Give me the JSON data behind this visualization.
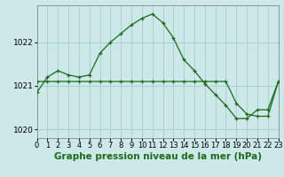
{
  "title": "Graphe pression niveau de la mer (hPa)",
  "background_color": "#cde8e8",
  "grid_color": "#aacccc",
  "line_color": "#1a6b1a",
  "hours": [
    0,
    1,
    2,
    3,
    4,
    5,
    6,
    7,
    8,
    9,
    10,
    11,
    12,
    13,
    14,
    15,
    16,
    17,
    18,
    19,
    20,
    21,
    22,
    23
  ],
  "series1": [
    1020.85,
    1021.2,
    1021.35,
    1021.25,
    1021.2,
    1021.25,
    1021.75,
    1022.0,
    1022.2,
    1022.4,
    1022.55,
    1022.65,
    1022.45,
    1022.1,
    1021.6,
    1021.35,
    1021.05,
    1020.8,
    1020.55,
    1020.25,
    1020.25,
    1020.45,
    1020.45,
    1021.1
  ],
  "series2": [
    1021.1,
    1021.1,
    1021.1,
    1021.1,
    1021.1,
    1021.1,
    1021.1,
    1021.1,
    1021.1,
    1021.1,
    1021.1,
    1021.1,
    1021.1,
    1021.1,
    1021.1,
    1021.1,
    1021.1,
    1021.1,
    1021.1,
    1020.6,
    1020.35,
    1020.3,
    1020.3,
    1021.1
  ],
  "ylim": [
    1019.8,
    1022.85
  ],
  "yticks": [
    1020,
    1021,
    1022
  ],
  "xlim": [
    0,
    23
  ],
  "title_fontsize": 7.5,
  "tick_fontsize": 6
}
